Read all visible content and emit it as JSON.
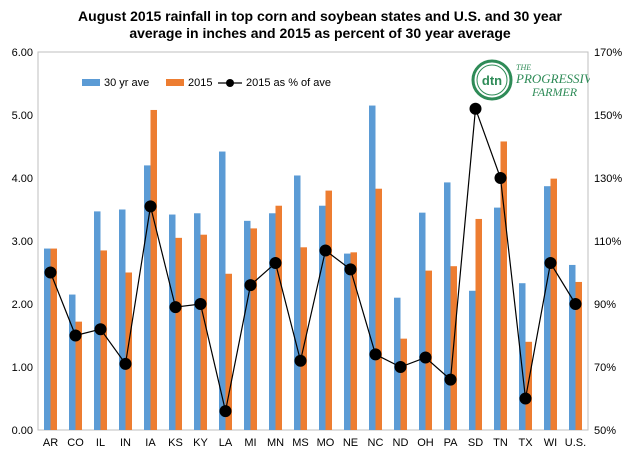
{
  "chart_data": {
    "type": "bar+line",
    "title_line1": "August 2015 rainfall in top corn and soybean states and U.S. and 30 year",
    "title_line2": "average in inches and 2015 as percent of 30 year average",
    "categories": [
      "AR",
      "CO",
      "IL",
      "IN",
      "IA",
      "KS",
      "KY",
      "LA",
      "MI",
      "MN",
      "MS",
      "MO",
      "NE",
      "NC",
      "ND",
      "OH",
      "PA",
      "SD",
      "TN",
      "TX",
      "WI",
      "U.S."
    ],
    "series": [
      {
        "name": "30 yr ave",
        "kind": "bar",
        "axis": "left",
        "color": "#5b9bd5",
        "values": [
          2.88,
          2.15,
          3.47,
          3.5,
          4.2,
          3.42,
          3.44,
          4.42,
          3.32,
          3.44,
          4.04,
          3.56,
          2.8,
          5.15,
          2.1,
          3.45,
          3.93,
          2.21,
          3.53,
          2.33,
          3.87,
          2.62
        ]
      },
      {
        "name": "2015",
        "kind": "bar",
        "axis": "left",
        "color": "#ed7d31",
        "values": [
          2.88,
          1.72,
          2.85,
          2.5,
          5.08,
          3.05,
          3.1,
          2.48,
          3.2,
          3.56,
          2.9,
          3.8,
          2.82,
          3.83,
          1.45,
          2.53,
          2.6,
          3.35,
          4.58,
          1.4,
          3.99,
          2.35
        ]
      },
      {
        "name": "2015 as % of ave",
        "kind": "line",
        "axis": "right",
        "color": "#000000",
        "values": [
          100,
          80,
          82,
          71,
          121,
          89,
          90,
          56,
          96,
          103,
          72,
          107,
          101,
          74,
          70,
          73,
          66,
          152,
          130,
          60,
          103,
          90
        ]
      }
    ],
    "left_axis": {
      "min": 0,
      "max": 6,
      "step": 1,
      "ticks": [
        "0.00",
        "1.00",
        "2.00",
        "3.00",
        "4.00",
        "5.00",
        "6.00"
      ]
    },
    "right_axis": {
      "min": 50,
      "max": 170,
      "step": 20,
      "ticks": [
        "50%",
        "70%",
        "90%",
        "110%",
        "130%",
        "150%",
        "170%"
      ]
    },
    "grid": false,
    "legend": "top-left"
  },
  "logo": {
    "mark": "dtn",
    "line1": "THE",
    "line2": "PROGRESSIVE",
    "line3": "FARMER"
  }
}
